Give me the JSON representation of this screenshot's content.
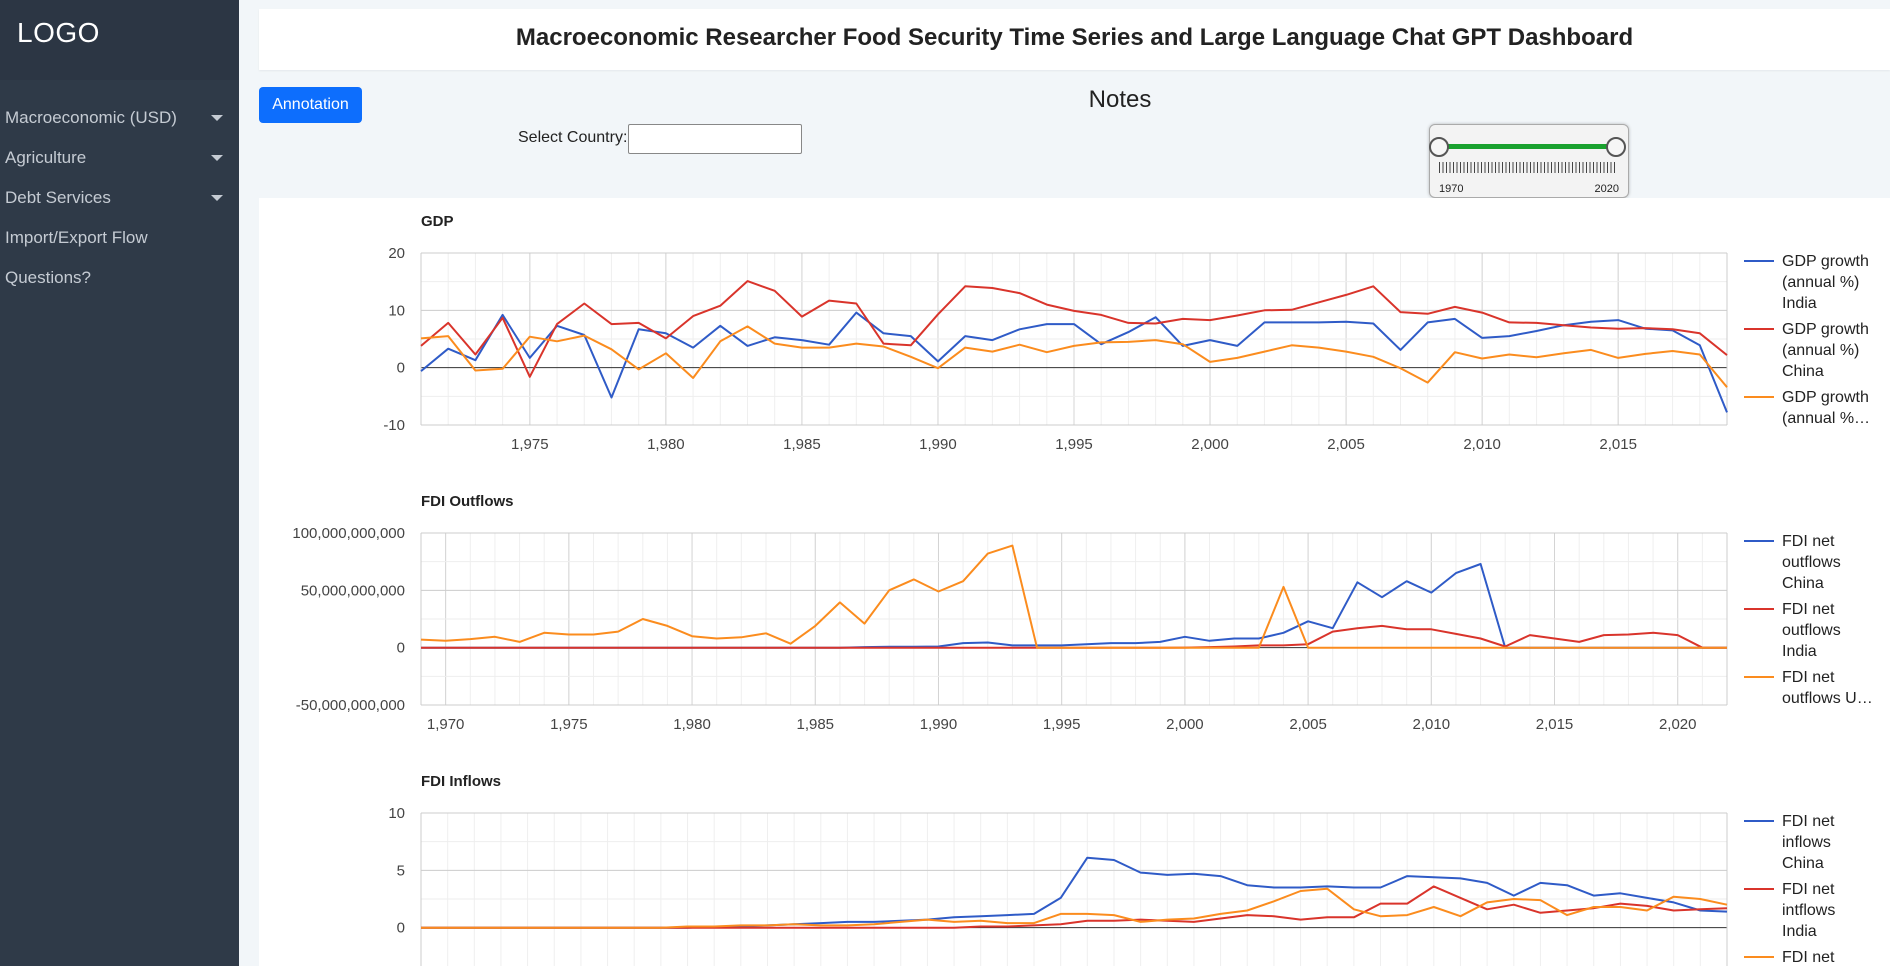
{
  "sidebar": {
    "logo": "LOGO",
    "items": [
      {
        "label": "Macroeconomic (USD)",
        "dropdown": true
      },
      {
        "label": "Agriculture",
        "dropdown": true
      },
      {
        "label": "Debt Services",
        "dropdown": true
      },
      {
        "label": "Import/Export Flow",
        "dropdown": false
      },
      {
        "label": "Questions?",
        "dropdown": false
      }
    ]
  },
  "header": {
    "title": "Macroeconomic Researcher Food Security Time Series and Large Language Chat GPT Dashboard"
  },
  "toolbar": {
    "annotation_label": "Annotation",
    "notes_title": "Notes"
  },
  "filters": {
    "country_label": "Select Country:",
    "country_value": ""
  },
  "range_slider": {
    "min_label": "1970",
    "max_label": "2020",
    "min": 1970,
    "max": 2020,
    "selected": [
      1970,
      2020
    ]
  },
  "colors": {
    "blue": "#2f5bc7",
    "red": "#d9342b",
    "orange": "#fb8c1e",
    "sidebar": "#2f3a48",
    "accent": "#0d6efd",
    "slider": "#19a12e"
  },
  "chart_data": [
    {
      "type": "line",
      "title": "GDP",
      "ylim": [
        -10,
        20
      ],
      "yticks": [
        20,
        10,
        0,
        -10
      ],
      "ytick_labels": [
        "20",
        "10",
        "0",
        "-10"
      ],
      "xlim": [
        1971,
        2019
      ],
      "xticks": [
        1975,
        1980,
        1985,
        1990,
        1995,
        2000,
        2005,
        2010,
        2015
      ],
      "xtick_labels": [
        "1,975",
        "1,980",
        "1,985",
        "1,990",
        "1,995",
        "2,000",
        "2,005",
        "2,010",
        "2,015"
      ],
      "x_start": 1971,
      "legend": "right",
      "series": [
        {
          "name": "GDP growth (annual %) India",
          "legend_lines": [
            "GDP growth",
            "(annual %)",
            "India"
          ],
          "color": "#2f5bc7",
          "values": [
            -0.6,
            3.3,
            1.3,
            9.2,
            1.7,
            7.3,
            5.7,
            -5.2,
            6.7,
            6.0,
            3.5,
            7.3,
            3.8,
            5.3,
            4.8,
            4.0,
            9.6,
            6.0,
            5.5,
            1.1,
            5.5,
            4.8,
            6.7,
            7.6,
            7.6,
            4.1,
            6.2,
            8.8,
            3.8,
            4.8,
            3.8,
            7.9,
            7.9,
            7.9,
            8.0,
            7.7,
            3.1,
            7.9,
            8.5,
            5.2,
            5.5,
            6.4,
            7.4,
            8.0,
            8.3,
            6.8,
            6.5,
            3.9,
            -7.8
          ]
        },
        {
          "name": "GDP growth (annual %) China",
          "legend_lines": [
            "GDP growth",
            "(annual %)",
            "China"
          ],
          "color": "#d9342b",
          "values": [
            3.8,
            7.8,
            2.3,
            8.7,
            -1.6,
            7.6,
            11.2,
            7.6,
            7.8,
            5.1,
            9.0,
            10.8,
            15.1,
            13.4,
            8.9,
            11.7,
            11.2,
            4.2,
            3.9,
            9.3,
            14.2,
            13.9,
            13.0,
            11.0,
            9.9,
            9.2,
            7.8,
            7.7,
            8.5,
            8.3,
            9.1,
            10.0,
            10.1,
            11.4,
            12.7,
            14.2,
            9.7,
            9.4,
            10.6,
            9.6,
            7.9,
            7.8,
            7.4,
            7.0,
            6.8,
            6.9,
            6.7,
            6.0,
            2.2
          ]
        },
        {
          "name": "GDP growth (annual %...",
          "legend_lines": [
            "GDP growth",
            "(annual %…"
          ],
          "color": "#fb8c1e",
          "values": [
            5.1,
            5.5,
            -0.5,
            -0.2,
            5.4,
            4.6,
            5.6,
            3.2,
            -0.3,
            2.5,
            -1.8,
            4.6,
            7.2,
            4.2,
            3.5,
            3.5,
            4.2,
            3.7,
            1.9,
            -0.1,
            3.5,
            2.8,
            4.0,
            2.7,
            3.8,
            4.4,
            4.5,
            4.8,
            4.1,
            1.0,
            1.7,
            2.8,
            3.9,
            3.5,
            2.8,
            1.9,
            -0.1,
            -2.6,
            2.7,
            1.6,
            2.3,
            1.8,
            2.5,
            3.1,
            1.7,
            2.4,
            2.9,
            2.3,
            -3.4
          ]
        }
      ]
    },
    {
      "type": "line",
      "title": "FDI Outflows",
      "ylim": [
        -50000000000,
        100000000000
      ],
      "yticks": [
        100000000000,
        50000000000,
        0,
        -50000000000
      ],
      "ytick_labels": [
        "100,000,000,000",
        "50,000,000,000",
        "0",
        "-50,000,000,000"
      ],
      "xlim": [
        1969,
        2022
      ],
      "xticks": [
        1970,
        1975,
        1980,
        1985,
        1990,
        1995,
        2000,
        2005,
        2010,
        2015,
        2020
      ],
      "xtick_labels": [
        "1,970",
        "1,975",
        "1,980",
        "1,985",
        "1,990",
        "1,995",
        "2,000",
        "2,005",
        "2,010",
        "2,015",
        "2,020"
      ],
      "x_start": 1969,
      "legend": "right",
      "series": [
        {
          "name": "FDI net outflows China",
          "legend_lines": [
            "FDI net",
            "outflows",
            "China"
          ],
          "color": "#2f5bc7",
          "values": [
            0,
            0,
            0,
            0,
            0,
            0,
            0,
            0,
            0,
            0,
            0,
            0,
            0,
            0,
            0,
            0,
            0,
            0,
            500000000,
            800000000,
            800000000,
            1000000000,
            4000000000,
            4500000000,
            2000000000,
            2000000000,
            2000000000,
            3000000000,
            4000000000,
            4000000000,
            5000000000,
            9500000000,
            6000000000,
            8000000000,
            8000000000,
            13000000000,
            23000000000,
            17000000000,
            57000000000,
            44000000000,
            58000000000,
            48000000000,
            65000000000,
            73000000000,
            0,
            0,
            0,
            0,
            0,
            0,
            0,
            0,
            0,
            0
          ]
        },
        {
          "name": "FDI net outflows India",
          "legend_lines": [
            "FDI net",
            "outflows",
            "India"
          ],
          "color": "#d9342b",
          "values": [
            0,
            0,
            0,
            0,
            0,
            0,
            0,
            0,
            0,
            0,
            0,
            0,
            0,
            0,
            0,
            0,
            0,
            0,
            0,
            0,
            0,
            0,
            0,
            0,
            0,
            0,
            0,
            0,
            0,
            0,
            0,
            100000000,
            500000000,
            1000000000,
            2000000000,
            2000000000,
            3000000000,
            14000000000,
            17000000000,
            19000000000,
            16000000000,
            16000000000,
            12000000000,
            8000000000,
            1000000000,
            11000000000,
            8000000000,
            5000000000,
            11000000000,
            11500000000,
            13000000000,
            11000000000,
            0,
            0
          ]
        },
        {
          "name": "FDI net outflows U...",
          "legend_lines": [
            "FDI net",
            "outflows U…"
          ],
          "color": "#fb8c1e",
          "values": [
            7000000000,
            6000000000,
            7500000000,
            9500000000,
            5000000000,
            13000000000,
            11500000000,
            11500000000,
            14000000000,
            25000000000,
            19000000000,
            10000000000,
            8000000000,
            9000000000,
            12500000000,
            3500000000,
            19000000000,
            39500000000,
            21000000000,
            50000000000,
            59500000000,
            49000000000,
            58000000000,
            82000000000,
            89000000000,
            0,
            0,
            0,
            0,
            0,
            0,
            0,
            0,
            0,
            0,
            53000000000,
            0,
            0,
            0,
            0,
            0,
            0,
            0,
            0,
            0,
            0,
            0,
            0,
            0,
            0,
            0,
            0,
            0,
            0
          ]
        }
      ]
    },
    {
      "type": "line",
      "title": "FDI Inflows",
      "ylim": [
        -5,
        10
      ],
      "yticks": [
        10,
        5,
        0
      ],
      "ytick_labels": [
        "10",
        "5",
        "0"
      ],
      "xlim": [
        1970,
        2019
      ],
      "x_start": 1970,
      "legend": "right",
      "series": [
        {
          "name": "FDI net inflows China",
          "legend_lines": [
            "FDI net",
            "inflows",
            "China"
          ],
          "color": "#2f5bc7",
          "values": [
            0,
            0,
            0,
            0,
            0,
            0,
            0,
            0,
            0,
            0,
            0,
            0.1,
            0.1,
            0.2,
            0.3,
            0.4,
            0.5,
            0.5,
            0.6,
            0.7,
            0.9,
            1.0,
            1.1,
            1.2,
            2.6,
            6.1,
            5.9,
            4.8,
            4.6,
            4.7,
            4.5,
            3.7,
            3.5,
            3.5,
            3.6,
            3.5,
            3.5,
            4.5,
            4.4,
            4.3,
            3.9,
            2.8,
            3.9,
            3.7,
            2.8,
            3.0,
            2.6,
            2.2,
            1.5,
            1.4,
            1.7,
            1.3,
            0,
            0,
            0,
            0
          ]
        },
        {
          "name": "FDI net intflows India",
          "legend_lines": [
            "FDI net",
            "intflows",
            "India"
          ],
          "color": "#d9342b",
          "values": [
            0,
            0,
            0,
            0,
            0,
            0,
            0,
            0,
            0,
            0,
            0,
            0,
            0,
            0,
            0,
            0,
            0,
            0,
            0,
            0,
            0,
            0.1,
            0.1,
            0.2,
            0.3,
            0.6,
            0.6,
            0.7,
            0.6,
            0.5,
            0.8,
            1.1,
            1.0,
            0.7,
            0.9,
            0.9,
            2.1,
            2.1,
            3.6,
            2.6,
            1.6,
            2.0,
            1.3,
            1.5,
            1.7,
            2.1,
            1.9,
            1.5,
            1.6,
            1.7,
            0,
            0,
            0,
            0
          ]
        },
        {
          "name": "FDI net",
          "legend_lines": [
            "FDI net"
          ],
          "color": "#fb8c1e",
          "values": [
            0,
            0,
            0,
            0,
            0,
            0,
            0,
            0,
            0,
            0,
            0.1,
            0.1,
            0.2,
            0.2,
            0.3,
            0.2,
            0.2,
            0.3,
            0.5,
            0.7,
            0.5,
            0.6,
            0.4,
            0.4,
            1.2,
            1.2,
            1.1,
            0.5,
            0.7,
            0.8,
            1.2,
            1.5,
            2.3,
            3.2,
            3.4,
            1.6,
            1.0,
            1.1,
            1.8,
            1.0,
            2.2,
            2.5,
            2.4,
            1.1,
            1.8,
            1.8,
            1.5,
            2.7,
            2.5,
            2.0,
            1.0,
            1.5,
            0,
            0,
            0
          ]
        }
      ]
    }
  ]
}
